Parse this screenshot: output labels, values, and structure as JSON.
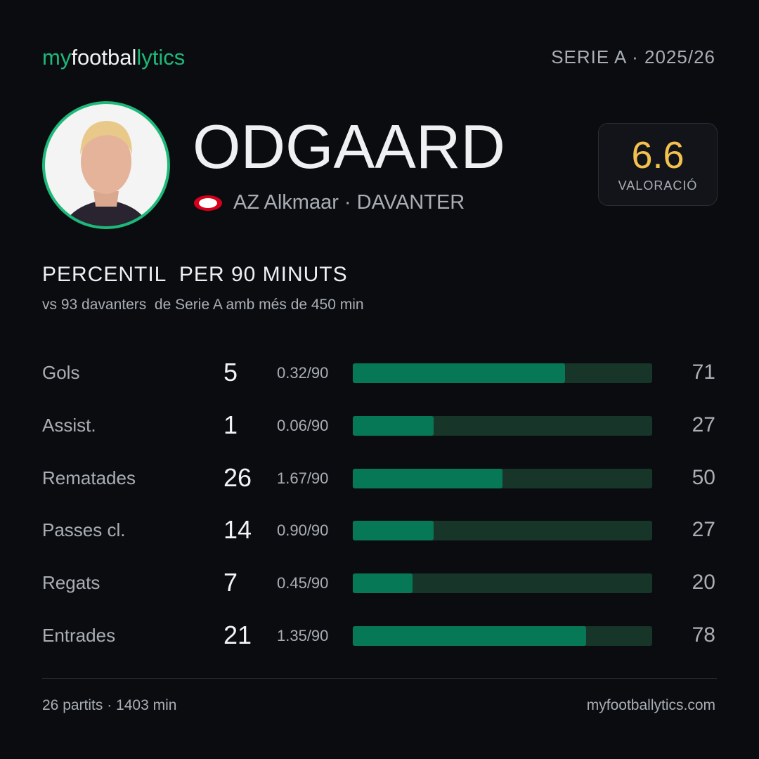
{
  "header": {
    "logo": [
      "my",
      "footbal",
      "lytics"
    ],
    "league": "SERIE A · 2025/26"
  },
  "player": {
    "name": "ODGAARD",
    "club": "AZ Alkmaar · DAVANTER",
    "rating": "6.6",
    "rating_label": "VALORACIÓ"
  },
  "section": {
    "title": "PERCENTIL  PER 90 MINUTS",
    "subtitle": "vs 93 davanters  de Serie A amb més de 450 min"
  },
  "percentile_range": [
    0,
    100
  ],
  "stats": [
    {
      "label": "Gols",
      "total": "5",
      "per90": "0.32/90",
      "percentile": 71
    },
    {
      "label": "Assist.",
      "total": "1",
      "per90": "0.06/90",
      "percentile": 27
    },
    {
      "label": "Rematades",
      "total": "26",
      "per90": "1.67/90",
      "percentile": 50
    },
    {
      "label": "Passes cl.",
      "total": "14",
      "per90": "0.90/90",
      "percentile": 27
    },
    {
      "label": "Regats",
      "total": "7",
      "per90": "0.45/90",
      "percentile": 20
    },
    {
      "label": "Entrades",
      "total": "21",
      "per90": "1.35/90",
      "percentile": 78
    }
  ],
  "footer": {
    "left": "26 partits · 1403 min",
    "right": "myfootballytics.com"
  }
}
